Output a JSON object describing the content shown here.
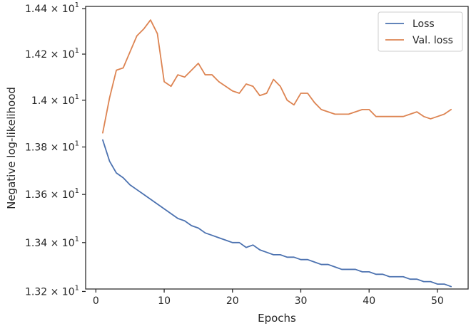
{
  "chart_data": {
    "type": "line",
    "title": "",
    "xlabel": "Epochs",
    "ylabel": "Negative log-likelihood",
    "xlim": [
      -1.5,
      54.5
    ],
    "ylim": [
      13.21,
      14.41
    ],
    "x_ticks": [
      0,
      10,
      20,
      30,
      40,
      50
    ],
    "y_ticks": [
      {
        "value": 13.2,
        "mantissa": "1.32",
        "exponent": "1"
      },
      {
        "value": 13.4,
        "mantissa": "1.34",
        "exponent": "1"
      },
      {
        "value": 13.6,
        "mantissa": "1.36",
        "exponent": "1"
      },
      {
        "value": 13.8,
        "mantissa": "1.38",
        "exponent": "1"
      },
      {
        "value": 14.0,
        "mantissa": "1.4",
        "exponent": "1"
      },
      {
        "value": 14.2,
        "mantissa": "1.42",
        "exponent": "1"
      },
      {
        "value": 14.4,
        "mantissa": "1.44",
        "exponent": "1"
      }
    ],
    "y_scale": "log",
    "grid": false,
    "legend_position": "top-right",
    "x": [
      1,
      2,
      3,
      4,
      5,
      6,
      7,
      8,
      9,
      10,
      11,
      12,
      13,
      14,
      15,
      16,
      17,
      18,
      19,
      20,
      21,
      22,
      23,
      24,
      25,
      26,
      27,
      28,
      29,
      30,
      31,
      32,
      33,
      34,
      35,
      36,
      37,
      38,
      39,
      40,
      41,
      42,
      43,
      44,
      45,
      46,
      47,
      48,
      49,
      50,
      51,
      52
    ],
    "series": [
      {
        "name": "Loss",
        "color": "#4c72b0",
        "values": [
          13.83,
          13.74,
          13.69,
          13.67,
          13.64,
          13.62,
          13.6,
          13.58,
          13.56,
          13.54,
          13.52,
          13.5,
          13.49,
          13.47,
          13.46,
          13.44,
          13.43,
          13.42,
          13.41,
          13.4,
          13.4,
          13.38,
          13.39,
          13.37,
          13.36,
          13.35,
          13.35,
          13.34,
          13.34,
          13.33,
          13.33,
          13.32,
          13.31,
          13.31,
          13.3,
          13.29,
          13.29,
          13.29,
          13.28,
          13.28,
          13.27,
          13.27,
          13.26,
          13.26,
          13.26,
          13.25,
          13.25,
          13.24,
          13.24,
          13.23,
          13.23,
          13.22
        ]
      },
      {
        "name": "Val. loss",
        "color": "#dd8452",
        "values": [
          13.86,
          14.01,
          14.13,
          14.14,
          14.21,
          14.28,
          14.31,
          14.35,
          14.29,
          14.08,
          14.06,
          14.11,
          14.1,
          14.13,
          14.16,
          14.11,
          14.11,
          14.08,
          14.06,
          14.04,
          14.03,
          14.07,
          14.06,
          14.02,
          14.03,
          14.09,
          14.06,
          14.0,
          13.98,
          14.03,
          14.03,
          13.99,
          13.96,
          13.95,
          13.94,
          13.94,
          13.94,
          13.95,
          13.96,
          13.96,
          13.93,
          13.93,
          13.93,
          13.93,
          13.93,
          13.94,
          13.95,
          13.93,
          13.92,
          13.93,
          13.94,
          13.96
        ]
      }
    ]
  }
}
